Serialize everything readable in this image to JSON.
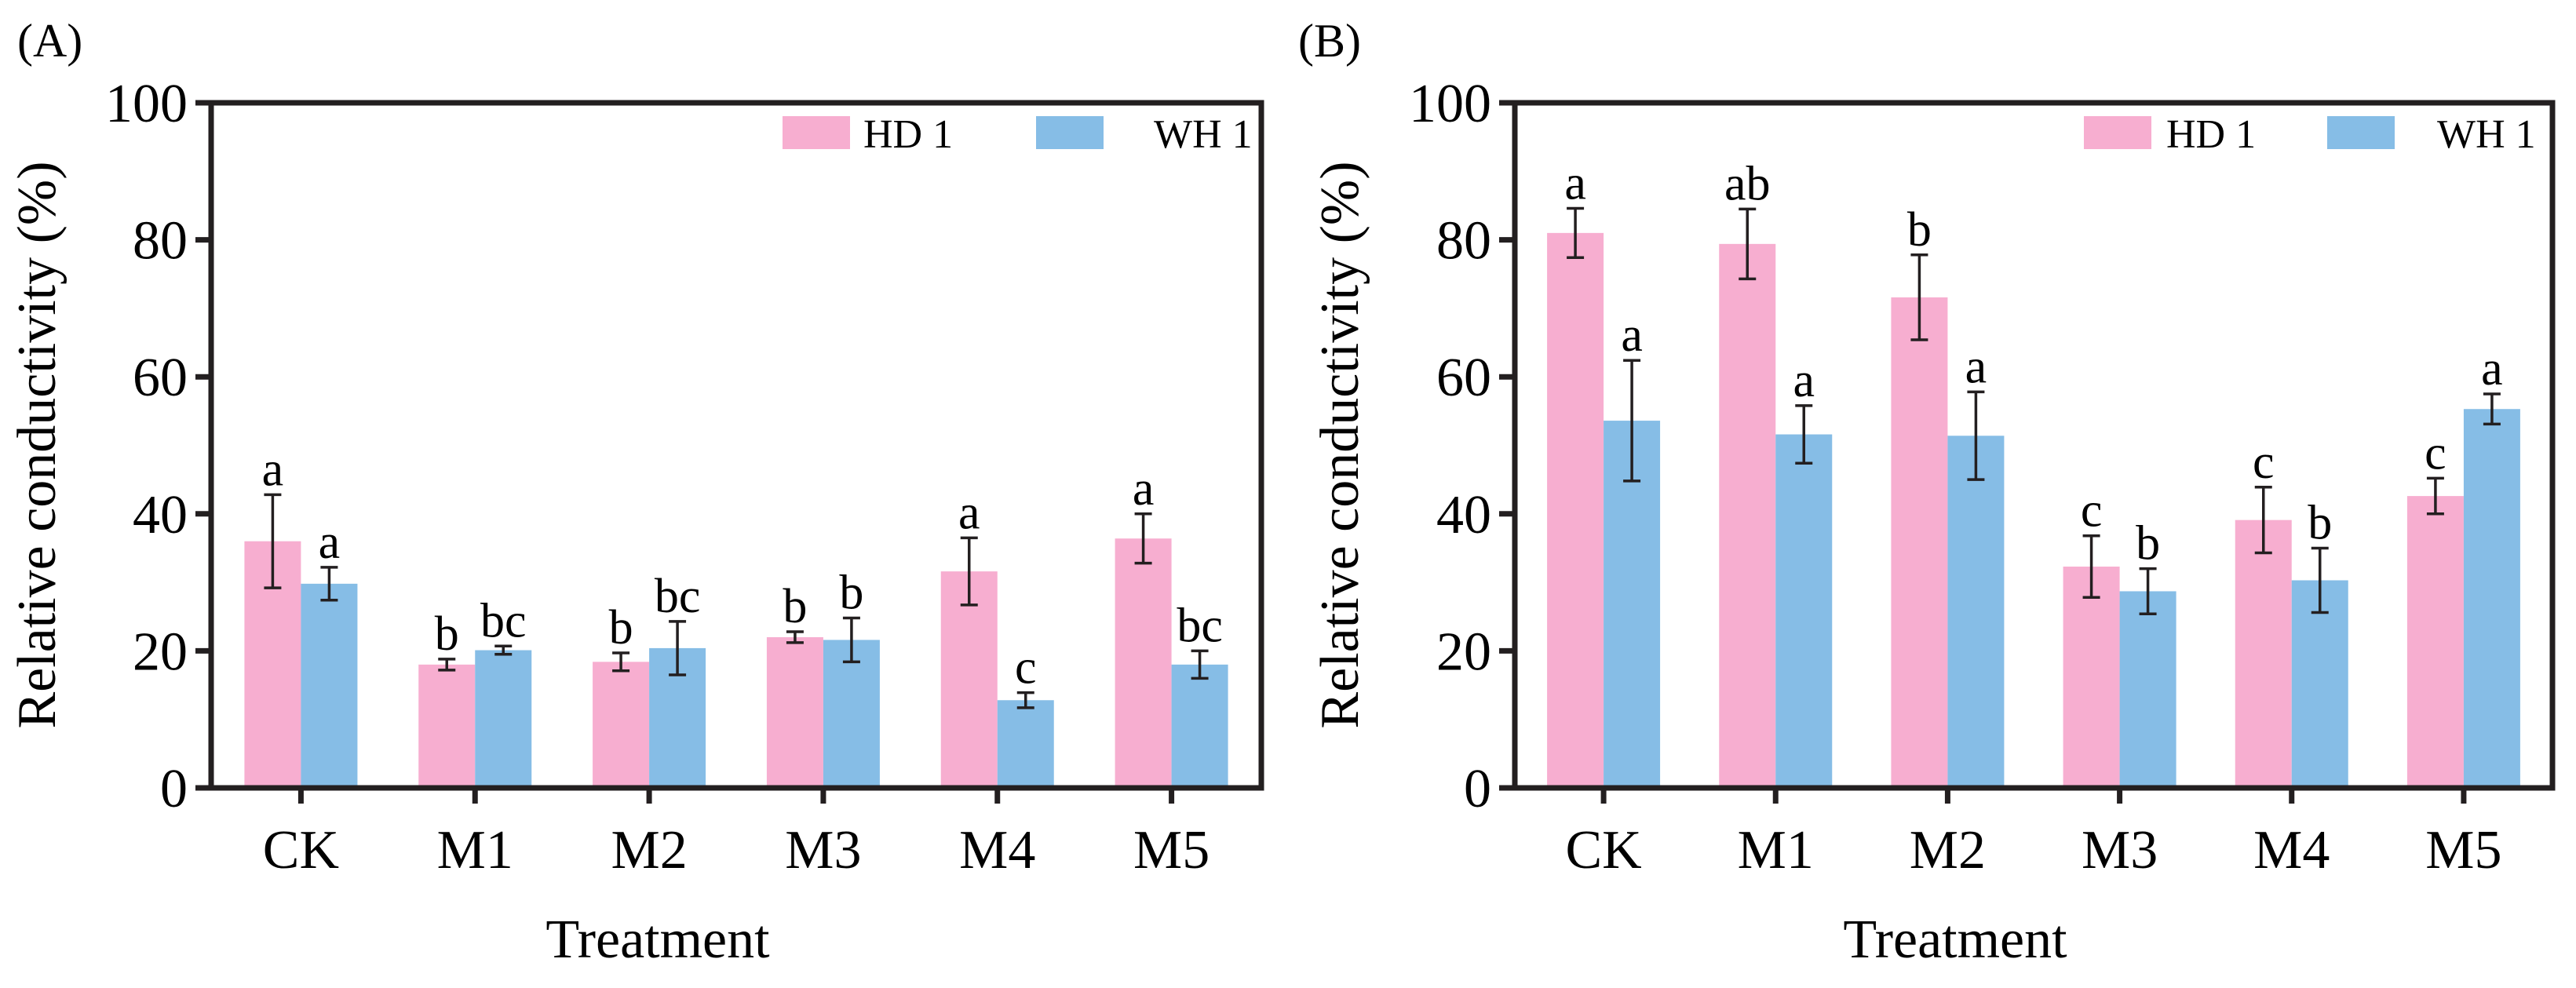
{
  "colors": {
    "hd1": "#F7AED0",
    "wh1": "#86BDE6",
    "axis": "#231F20"
  },
  "chart_data": [
    {
      "type": "bar",
      "panel_label": "(A)",
      "xlabel": "Treatment",
      "ylabel": "Relative conductivity (%)",
      "ylim": [
        0,
        100
      ],
      "yticks": [
        0,
        20,
        40,
        60,
        80,
        100
      ],
      "ytick_labels": [
        "0",
        "20",
        "40",
        "60",
        "80",
        "100"
      ],
      "categories": [
        "CK",
        "M1",
        "M2",
        "M3",
        "M4",
        "M5"
      ],
      "legend": [
        "HD 1",
        "WH 1"
      ],
      "legend_position": "top-right",
      "series": [
        {
          "name": "HD 1",
          "color_key": "hd1",
          "values": [
            36.0,
            18.0,
            18.4,
            22.0,
            31.6,
            36.4
          ],
          "errors": [
            6.8,
            0.8,
            1.3,
            0.8,
            4.9,
            3.6
          ],
          "letters": [
            "a",
            "b",
            "b",
            "b",
            "a",
            "a"
          ]
        },
        {
          "name": "WH 1",
          "color_key": "wh1",
          "values": [
            29.8,
            20.1,
            20.4,
            21.6,
            12.8,
            18.0
          ],
          "errors": [
            2.4,
            0.6,
            3.9,
            3.2,
            1.1,
            2.0
          ],
          "letters": [
            "a",
            "bc",
            "bc",
            "b",
            "c",
            "bc"
          ]
        }
      ]
    },
    {
      "type": "bar",
      "panel_label": "(B)",
      "xlabel": "Treatment",
      "ylabel": "Relative conductivity (%)",
      "ylim": [
        0,
        100
      ],
      "yticks": [
        0,
        20,
        40,
        60,
        80,
        100
      ],
      "ytick_labels": [
        "0",
        "20",
        "40",
        "60",
        "80",
        "100"
      ],
      "categories": [
        "CK",
        "M1",
        "M2",
        "M3",
        "M4",
        "M5"
      ],
      "legend": [
        "HD 1",
        "WH 1"
      ],
      "legend_position": "top-right",
      "series": [
        {
          "name": "HD 1",
          "color_key": "hd1",
          "values": [
            81.0,
            79.4,
            71.6,
            32.3,
            39.1,
            42.6
          ],
          "errors": [
            3.6,
            5.1,
            6.2,
            4.5,
            4.8,
            2.6
          ],
          "letters": [
            "a",
            "ab",
            "b",
            "c",
            "c",
            "c"
          ]
        },
        {
          "name": "WH 1",
          "color_key": "wh1",
          "values": [
            53.6,
            51.6,
            51.4,
            28.7,
            30.3,
            55.3
          ],
          "errors": [
            8.8,
            4.2,
            6.4,
            3.3,
            4.7,
            2.2
          ],
          "letters": [
            "a",
            "a",
            "a",
            "b",
            "b",
            "a"
          ]
        }
      ]
    }
  ]
}
